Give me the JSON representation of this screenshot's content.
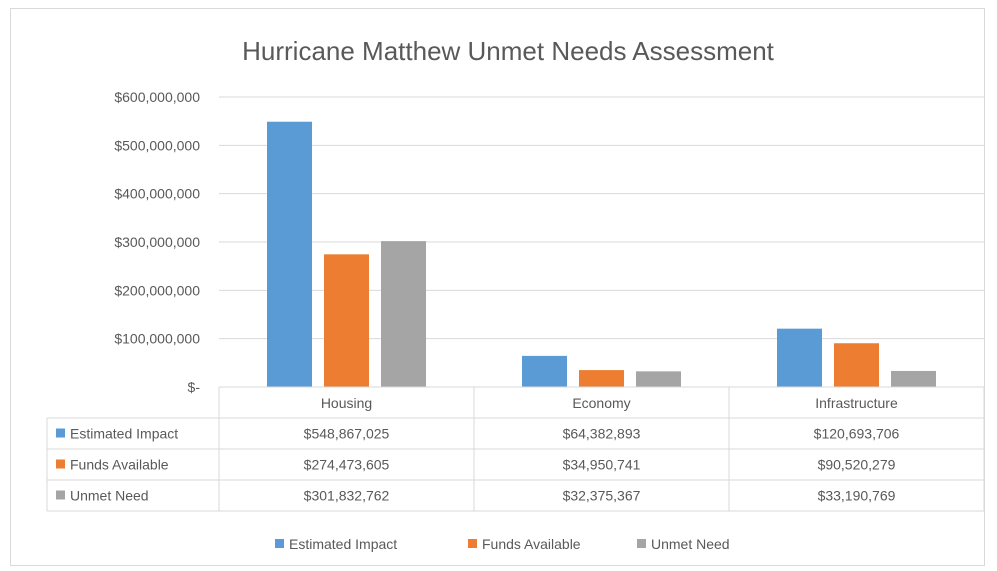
{
  "chart_data": {
    "type": "bar",
    "title": "Hurricane Matthew Unmet Needs Assessment",
    "categories": [
      "Housing",
      "Economy",
      "Infrastructure"
    ],
    "series": [
      {
        "name": "Estimated Impact",
        "color": "#5b9bd5",
        "values": [
          548867025,
          64382893,
          120693706
        ],
        "labels": [
          "$548,867,025",
          "$64,382,893",
          "$120,693,706"
        ]
      },
      {
        "name": "Funds Available",
        "color": "#ed7d31",
        "values": [
          274473605,
          34950741,
          90520279
        ],
        "labels": [
          "$274,473,605",
          "$34,950,741",
          "$90,520,279"
        ]
      },
      {
        "name": "Unmet Need",
        "color": "#a5a5a5",
        "values": [
          301832762,
          32375367,
          33190769
        ],
        "labels": [
          "$301,832,762",
          "$32,375,367",
          "$33,190,769"
        ]
      }
    ],
    "ylim": [
      0,
      600000000
    ],
    "yticks": [
      0,
      100000000,
      200000000,
      300000000,
      400000000,
      500000000,
      600000000
    ],
    "ytick_labels": [
      "$-",
      "$100,000,000",
      "$200,000,000",
      "$300,000,000",
      "$400,000,000",
      "$500,000,000",
      "$600,000,000"
    ],
    "grid": true,
    "legend_position": "bottom",
    "data_table": true
  }
}
